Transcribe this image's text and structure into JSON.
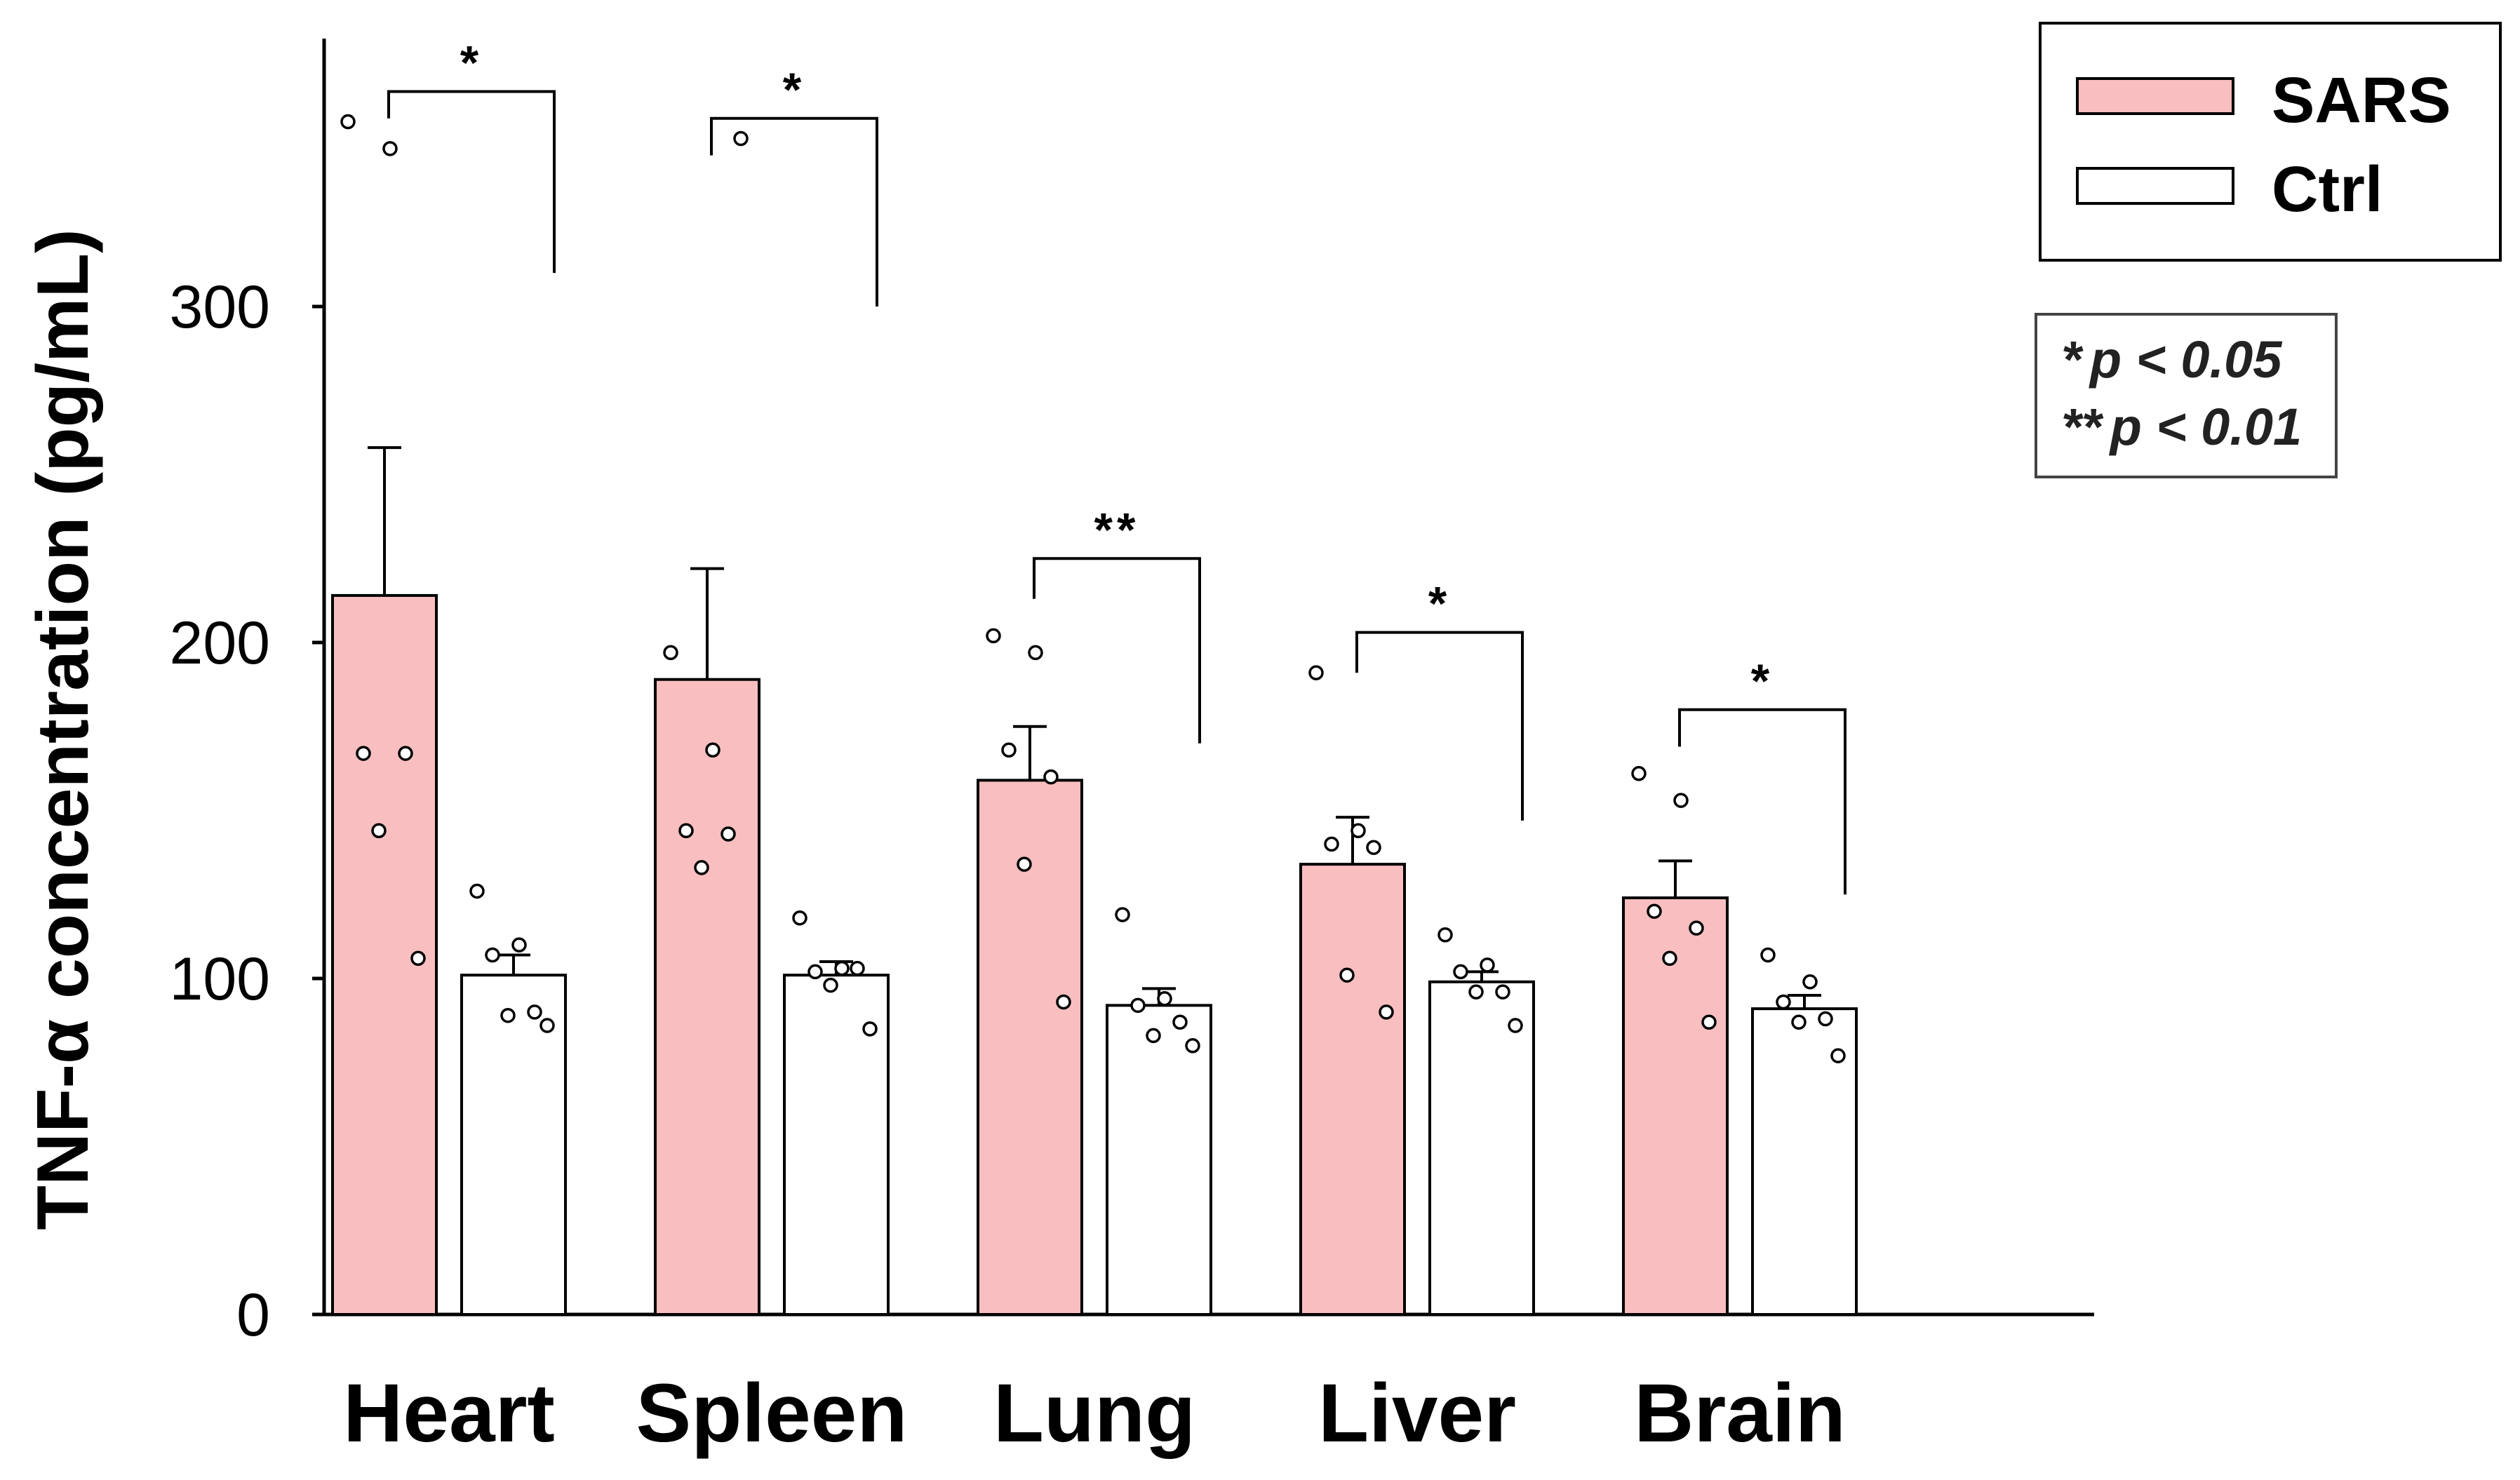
{
  "chart_data": {
    "type": "bar",
    "title": "",
    "xlabel": "",
    "ylabel": "TNF-α concentration (pg/mL)",
    "ylim": [
      0,
      380
    ],
    "yticks": [
      0,
      100,
      200,
      300
    ],
    "categories": [
      "Heart",
      "Spleen",
      "Lung",
      "Liver",
      "Brain"
    ],
    "series": [
      {
        "name": "SARS",
        "color": "#F9BFC0",
        "values": [
          214,
          189,
          159,
          134,
          124
        ],
        "errors": [
          44,
          33,
          16,
          14,
          11
        ],
        "points": [
          [
            355,
            347,
            167,
            167,
            144,
            106
          ],
          [
            197,
            168,
            144,
            143,
            133,
            350
          ],
          [
            202,
            197,
            168,
            160,
            134,
            93
          ],
          [
            191,
            144,
            140,
            139,
            101,
            90
          ],
          [
            161,
            153,
            120,
            115,
            106,
            87
          ]
        ]
      },
      {
        "name": "Ctrl",
        "color": "#FFFFFF",
        "values": [
          101,
          101,
          92,
          99,
          91
        ],
        "errors": [
          6,
          4,
          5,
          3,
          4
        ],
        "points": [
          [
            126,
            110,
            107,
            90,
            89,
            86
          ],
          [
            118,
            103,
            102,
            103,
            98,
            85
          ],
          [
            119,
            94,
            92,
            87,
            83,
            80
          ],
          [
            113,
            104,
            102,
            96,
            96,
            86
          ],
          [
            107,
            99,
            93,
            88,
            87,
            77
          ]
        ]
      }
    ],
    "significance": [
      {
        "category": "Heart",
        "label": "*",
        "bracket_top": 364,
        "sars_end": 356,
        "ctrl_end": 310
      },
      {
        "category": "Spleen",
        "label": "*",
        "bracket_top": 356,
        "sars_end": 345,
        "ctrl_end": 300
      },
      {
        "category": "Lung",
        "label": "**",
        "bracket_top": 225,
        "sars_end": 213,
        "ctrl_end": 170
      },
      {
        "category": "Liver",
        "label": "*",
        "bracket_top": 203,
        "sars_end": 191,
        "ctrl_end": 147
      },
      {
        "category": "Brain",
        "label": "*",
        "bracket_top": 180,
        "sars_end": 169,
        "ctrl_end": 125
      }
    ],
    "legend": {
      "position": "top-right",
      "entries": [
        "SARS",
        "Ctrl"
      ]
    },
    "p_notes": [
      {
        "stars": "*",
        "text": "p < 0.05"
      },
      {
        "stars": "**",
        "text": "p < 0.01"
      }
    ]
  }
}
